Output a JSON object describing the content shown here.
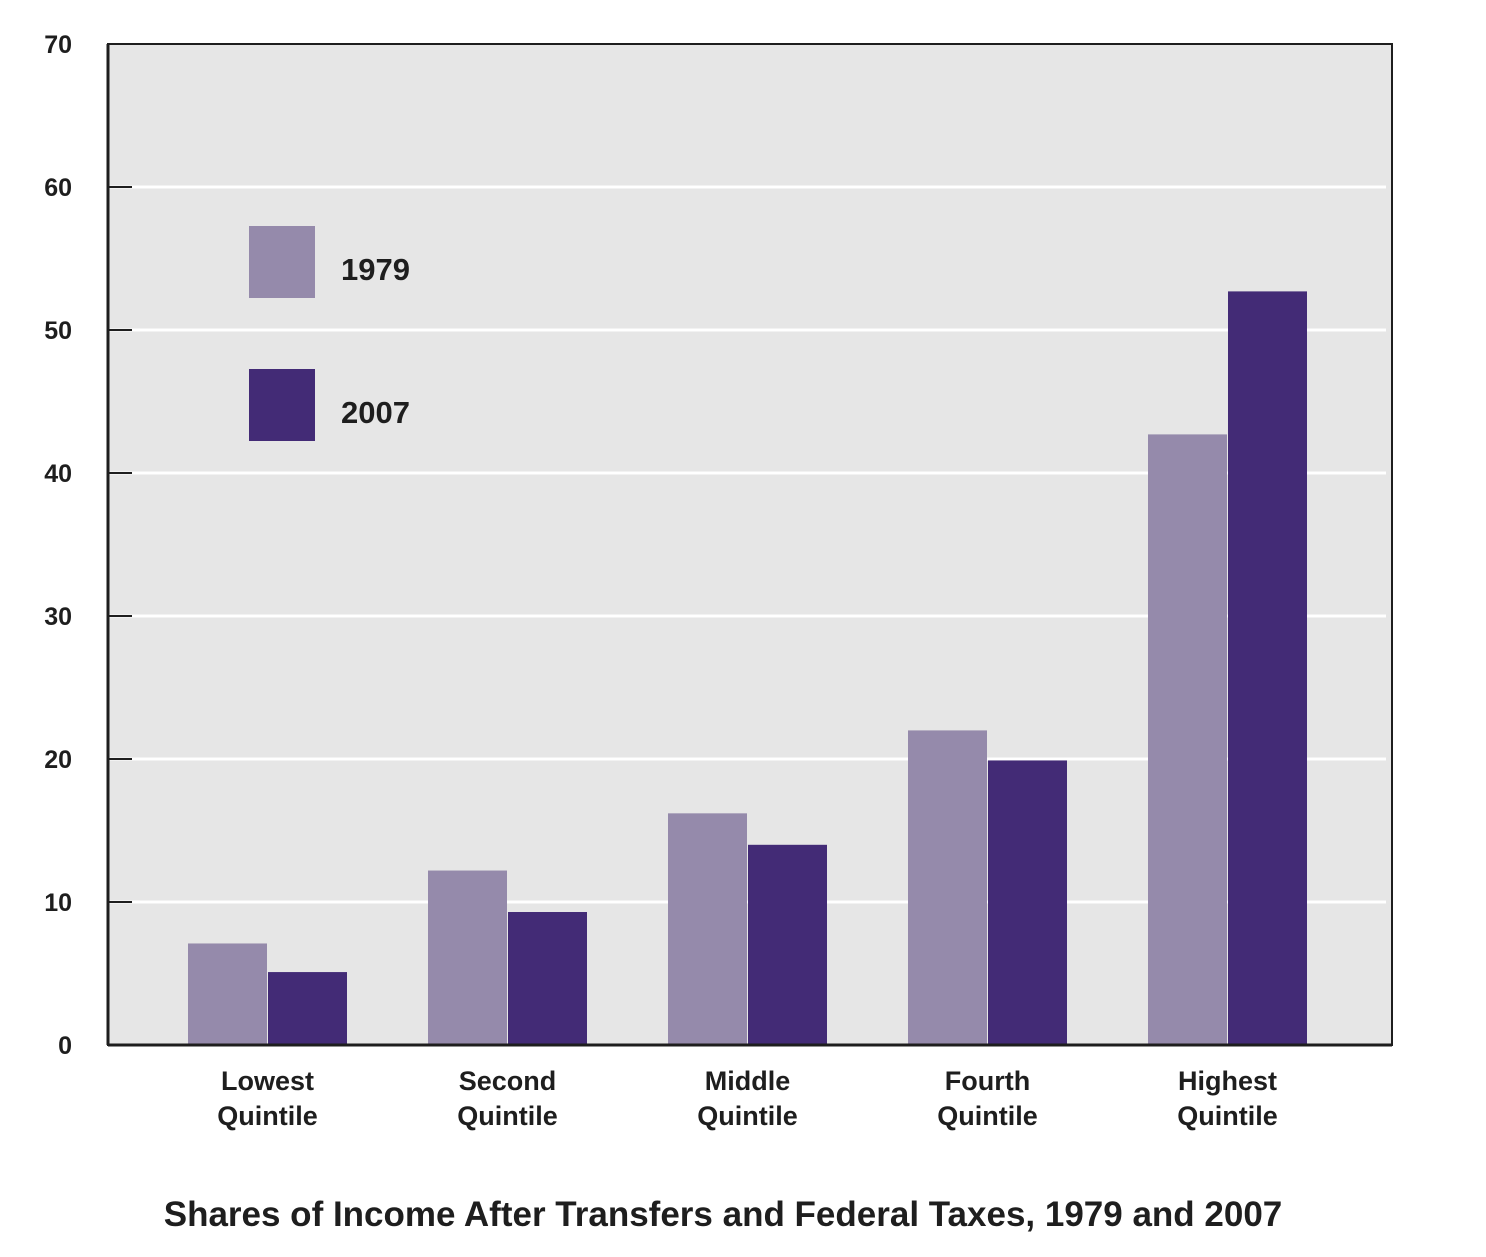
{
  "chart_data": {
    "type": "bar",
    "title": "Shares of Income After Transfers and Federal Taxes, 1979 and 2007",
    "xlabel": "",
    "ylabel": "",
    "ylim": [
      0,
      70
    ],
    "yticks": [
      "0",
      "10",
      "20",
      "30",
      "40",
      "50",
      "60",
      "70"
    ],
    "categories": [
      [
        "Lowest",
        "Quintile"
      ],
      [
        "Second",
        "Quintile"
      ],
      [
        "Middle",
        "Quintile"
      ],
      [
        "Fourth",
        "Quintile"
      ],
      [
        "Highest",
        "Quintile"
      ]
    ],
    "series": [
      {
        "name": "1979",
        "color": "#958aab",
        "values": [
          7.1,
          12.2,
          16.2,
          22.0,
          42.7
        ]
      },
      {
        "name": "2007",
        "color": "#432b76",
        "values": [
          5.1,
          9.3,
          14.0,
          19.9,
          52.7
        ]
      }
    ],
    "grid": true,
    "legend": "top-left",
    "plot_background": "#e6e6e6"
  }
}
